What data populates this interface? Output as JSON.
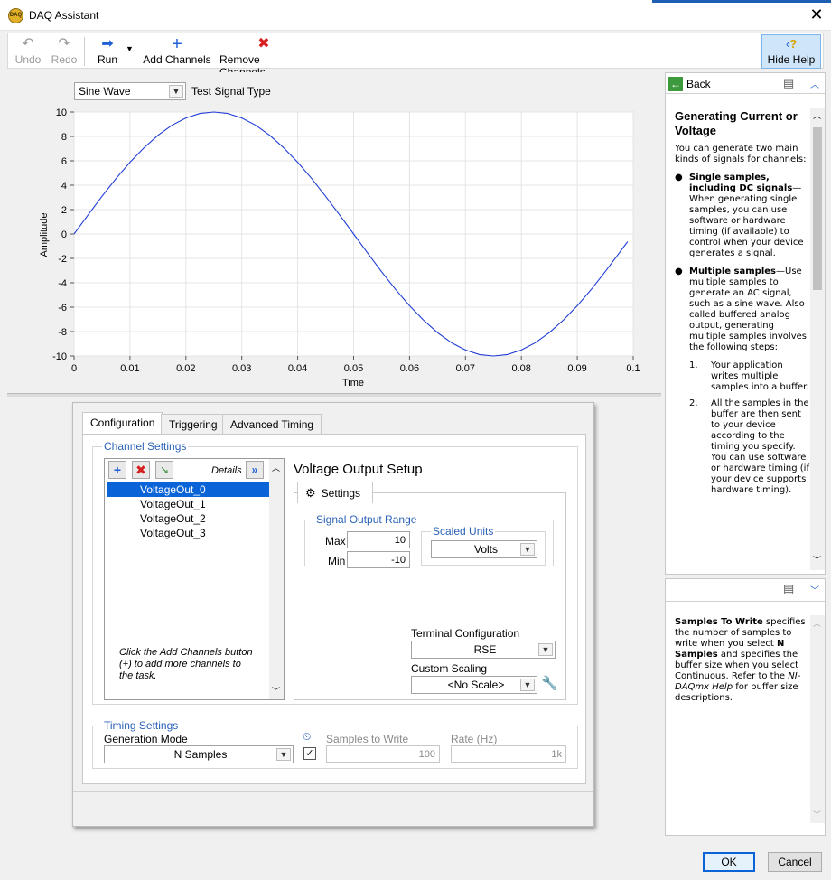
{
  "window": {
    "title": "DAQ Assistant",
    "app_icon_text": "DAQ"
  },
  "toolbar": {
    "undo": "Undo",
    "redo": "Redo",
    "run": "Run",
    "add_channels": "Add Channels",
    "remove_channels": "Remove Channels",
    "hide_help": "Hide Help"
  },
  "chart_controls": {
    "signal_type_value": "Sine Wave",
    "signal_type_label": "Test Signal Type"
  },
  "chart_data": {
    "type": "line",
    "title": "",
    "xlabel": "Time",
    "ylabel": "Amplitude",
    "xlim": [
      0,
      0.1
    ],
    "ylim": [
      -10,
      10
    ],
    "x_ticks": [
      "0",
      "0.01",
      "0.02",
      "0.03",
      "0.04",
      "0.05",
      "0.06",
      "0.07",
      "0.08",
      "0.09",
      "0.1"
    ],
    "y_ticks": [
      "10",
      "8",
      "6",
      "4",
      "2",
      "0",
      "-2",
      "-4",
      "-6",
      "-8",
      "-10"
    ],
    "grid": true,
    "series": [
      {
        "color": "#1f3bd6",
        "x": [
          0,
          0.0025,
          0.005,
          0.0075,
          0.01,
          0.0125,
          0.015,
          0.0175,
          0.02,
          0.0225,
          0.025,
          0.0275,
          0.03,
          0.0325,
          0.035,
          0.0375,
          0.04,
          0.0425,
          0.045,
          0.0475,
          0.05,
          0.0525,
          0.055,
          0.0575,
          0.06,
          0.0625,
          0.065,
          0.0675,
          0.07,
          0.0725,
          0.075,
          0.0775,
          0.08,
          0.0825,
          0.085,
          0.0875,
          0.09,
          0.0925,
          0.095,
          0.0975,
          0.099
        ],
        "y": [
          0,
          1.56,
          3.09,
          4.54,
          5.88,
          7.07,
          8.09,
          8.91,
          9.51,
          9.88,
          10,
          9.88,
          9.51,
          8.91,
          8.09,
          7.07,
          5.88,
          4.54,
          3.09,
          1.56,
          0,
          -1.56,
          -3.09,
          -4.54,
          -5.88,
          -7.07,
          -8.09,
          -8.91,
          -9.51,
          -9.88,
          -10,
          -9.88,
          -9.51,
          -8.91,
          -8.09,
          -7.07,
          -5.88,
          -4.54,
          -3.09,
          -1.56,
          -0.63
        ]
      }
    ]
  },
  "config": {
    "tabs": [
      "Configuration",
      "Triggering",
      "Advanced Timing"
    ],
    "channel_settings": {
      "title": "Channel Settings",
      "details_label": "Details",
      "channels": [
        "VoltageOut_0",
        "VoltageOut_1",
        "VoltageOut_2",
        "VoltageOut_3"
      ],
      "hint": "Click the Add Channels button (+) to add more channels to the task."
    },
    "setup": {
      "title": "Voltage Output Setup",
      "settings_tab": "Settings",
      "signal_output_range_title": "Signal Output Range",
      "max_label": "Max",
      "max_value": "10",
      "min_label": "Min",
      "min_value": "-10",
      "scaled_units_title": "Scaled Units",
      "scaled_units_value": "Volts",
      "terminal_config_label": "Terminal Configuration",
      "terminal_config_value": "RSE",
      "custom_scaling_label": "Custom Scaling",
      "custom_scaling_value": "<No Scale>"
    },
    "timing": {
      "title": "Timing Settings",
      "generation_mode_label": "Generation Mode",
      "generation_mode_value": "N Samples",
      "samples_to_write_label": "Samples to Write",
      "samples_to_write_value": "100",
      "rate_label": "Rate (Hz)",
      "rate_value": "1k"
    }
  },
  "help_top": {
    "back": "Back",
    "heading": "Generating Current or Voltage",
    "intro": "You can generate two main kinds of signals for channels:",
    "b1_bold": "Single samples, including DC signals",
    "b1_text": "—When generating single samples, you can use software or hardware timing (if available) to control when your device generates a signal.",
    "b2_bold": "Multiple samples",
    "b2_text": "—Use multiple samples to generate an AC signal, such as a sine wave. Also called buffered analog output, generating multiple samples involves the following steps:",
    "s1_num": "1.",
    "s1": "Your application writes multiple samples into a buffer.",
    "s2_num": "2.",
    "s2": "All the samples in the buffer are then sent to your device according to the timing you specify. You can use software or hardware timing (if your device supports hardware timing)."
  },
  "help_bottom": {
    "bold1": "Samples To Write",
    "t1": " specifies the number of samples to write when you select ",
    "bold2": "N Samples",
    "t2": " and specifies the buffer size when you select Continuous. Refer to the ",
    "ital": "NI-DAQmx Help",
    "t3": " for buffer size descriptions."
  },
  "footer": {
    "ok": "OK",
    "cancel": "Cancel"
  }
}
